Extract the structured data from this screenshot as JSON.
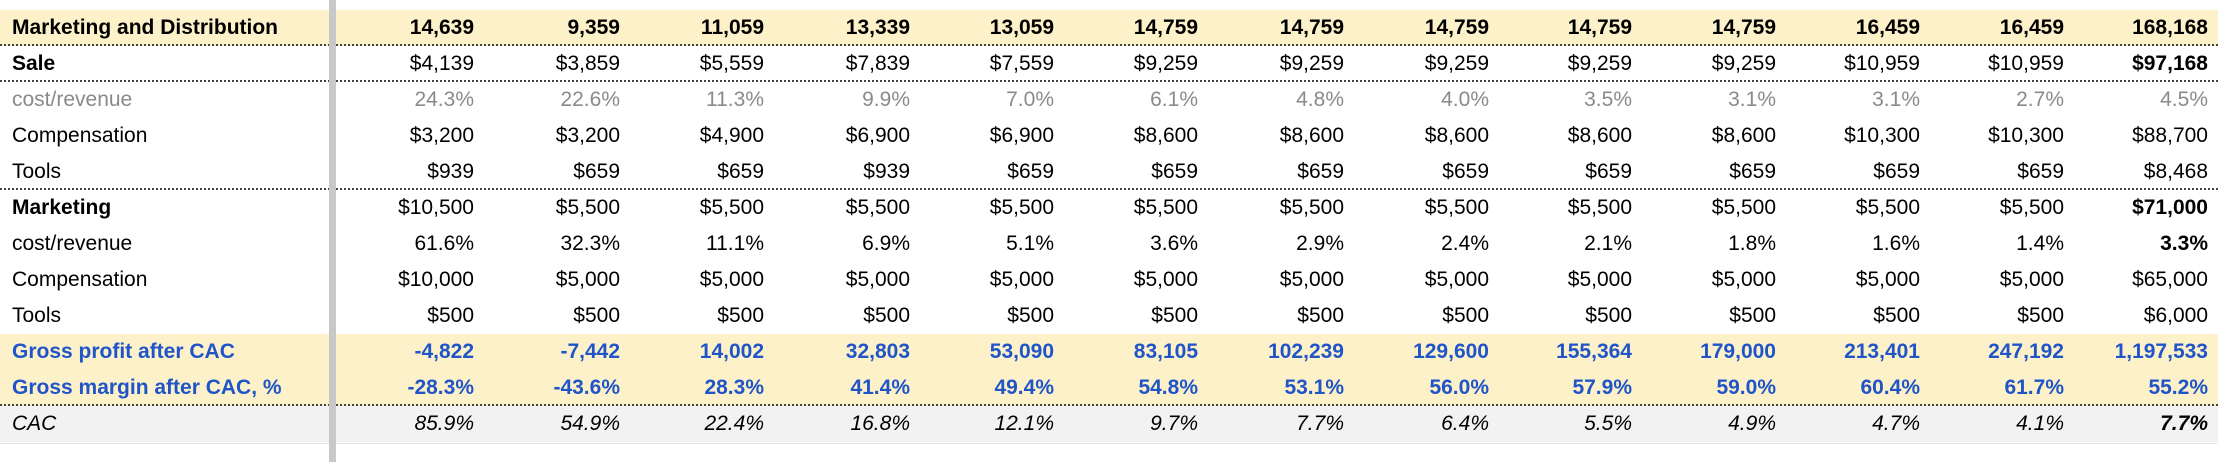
{
  "rows": [
    {
      "key": "marketing-and-distribution",
      "label": "Marketing and Distribution",
      "style": "header",
      "values": [
        "14,639",
        "9,359",
        "11,059",
        "13,339",
        "13,059",
        "14,759",
        "14,759",
        "14,759",
        "14,759",
        "14,759",
        "16,459",
        "16,459",
        "168,168"
      ]
    },
    {
      "key": "sale",
      "label": "Sale",
      "style": "bold-label",
      "values": [
        "$4,139",
        "$3,859",
        "$5,559",
        "$7,839",
        "$7,559",
        "$9,259",
        "$9,259",
        "$9,259",
        "$9,259",
        "$9,259",
        "$10,959",
        "$10,959",
        "$97,168"
      ]
    },
    {
      "key": "sale-cost-revenue",
      "label": "cost/revenue",
      "style": "gray",
      "values": [
        "24.3%",
        "22.6%",
        "11.3%",
        "9.9%",
        "7.0%",
        "6.1%",
        "4.8%",
        "4.0%",
        "3.5%",
        "3.1%",
        "3.1%",
        "2.7%",
        "4.5%"
      ]
    },
    {
      "key": "sale-compensation",
      "label": "Compensation",
      "style": "plain",
      "values": [
        "$3,200",
        "$3,200",
        "$4,900",
        "$6,900",
        "$6,900",
        "$8,600",
        "$8,600",
        "$8,600",
        "$8,600",
        "$8,600",
        "$10,300",
        "$10,300",
        "$88,700"
      ]
    },
    {
      "key": "sale-tools",
      "label": "Tools",
      "style": "plain",
      "values": [
        "$939",
        "$659",
        "$659",
        "$939",
        "$659",
        "$659",
        "$659",
        "$659",
        "$659",
        "$659",
        "$659",
        "$659",
        "$8,468"
      ]
    },
    {
      "key": "marketing",
      "label": "Marketing",
      "style": "bold-label",
      "values": [
        "$10,500",
        "$5,500",
        "$5,500",
        "$5,500",
        "$5,500",
        "$5,500",
        "$5,500",
        "$5,500",
        "$5,500",
        "$5,500",
        "$5,500",
        "$5,500",
        "$71,000"
      ]
    },
    {
      "key": "marketing-cost-revenue",
      "label": "cost/revenue",
      "style": "plain-boldtotal",
      "values": [
        "61.6%",
        "32.3%",
        "11.1%",
        "6.9%",
        "5.1%",
        "3.6%",
        "2.9%",
        "2.4%",
        "2.1%",
        "1.8%",
        "1.6%",
        "1.4%",
        "3.3%"
      ]
    },
    {
      "key": "marketing-compensation",
      "label": "Compensation",
      "style": "plain",
      "values": [
        "$10,000",
        "$5,000",
        "$5,000",
        "$5,000",
        "$5,000",
        "$5,000",
        "$5,000",
        "$5,000",
        "$5,000",
        "$5,000",
        "$5,000",
        "$5,000",
        "$65,000"
      ]
    },
    {
      "key": "marketing-tools",
      "label": "Tools",
      "style": "plain",
      "values": [
        "$500",
        "$500",
        "$500",
        "$500",
        "$500",
        "$500",
        "$500",
        "$500",
        "$500",
        "$500",
        "$500",
        "$500",
        "$6,000"
      ]
    },
    {
      "key": "gross-profit-after-cac",
      "label": "Gross profit after CAC",
      "style": "blue",
      "values": [
        "-4,822",
        "-7,442",
        "14,002",
        "32,803",
        "53,090",
        "83,105",
        "102,239",
        "129,600",
        "155,364",
        "179,000",
        "213,401",
        "247,192",
        "1,197,533"
      ]
    },
    {
      "key": "gross-margin-after-cac",
      "label": "Gross margin after CAC, %",
      "style": "blue",
      "values": [
        "-28.3%",
        "-43.6%",
        "28.3%",
        "41.4%",
        "49.4%",
        "54.8%",
        "53.1%",
        "56.0%",
        "57.9%",
        "59.0%",
        "60.4%",
        "61.7%",
        "55.2%"
      ]
    },
    {
      "key": "cac",
      "label": "CAC",
      "style": "italic",
      "values": [
        "85.9%",
        "54.9%",
        "22.4%",
        "16.8%",
        "12.1%",
        "9.7%",
        "7.7%",
        "6.4%",
        "5.5%",
        "4.9%",
        "4.7%",
        "4.1%",
        "7.7%"
      ]
    }
  ]
}
